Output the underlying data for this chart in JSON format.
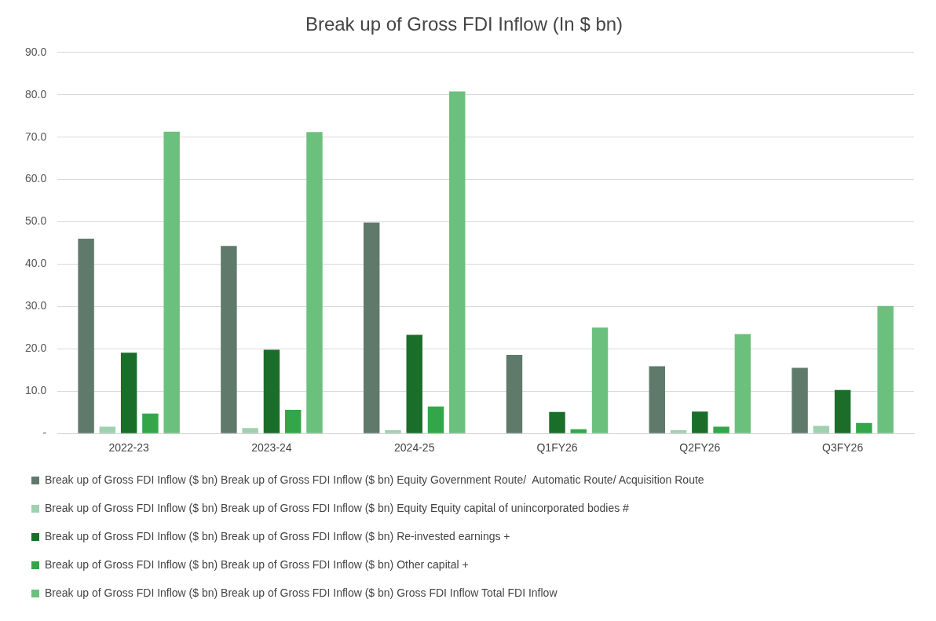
{
  "chart_data": {
    "type": "bar",
    "title": "Break up of Gross FDI Inflow (In $ bn)",
    "categories": [
      "2022-23",
      "2023-24",
      "2024-25",
      "Q1FY26",
      "Q2FY26",
      "Q3FY26"
    ],
    "series": [
      {
        "name": "Break up of Gross FDI Inflow ($ bn) Break up of Gross FDI Inflow ($ bn) Equity Government Route/  Automatic Route/ Acquisition Route",
        "color": "#5f7a6b",
        "values": [
          46.0,
          44.3,
          49.8,
          18.6,
          15.9,
          15.5
        ]
      },
      {
        "name": "Break up of Gross FDI Inflow ($ bn) Break up of Gross FDI Inflow ($ bn) Equity Equity capital of unincorporated bodies #",
        "color": "#9fd0b0",
        "values": [
          1.6,
          1.3,
          0.8,
          0,
          0.8,
          1.8
        ]
      },
      {
        "name": "Break up of Gross FDI Inflow ($ bn) Break up of Gross FDI Inflow ($ bn) Re-invested earnings +",
        "color": "#1b6e2a",
        "values": [
          19.1,
          19.8,
          23.3,
          5.1,
          5.2,
          10.3
        ]
      },
      {
        "name": "Break up of Gross FDI Inflow ($ bn) Break up of Gross FDI Inflow ($ bn) Other capital +",
        "color": "#33a64a",
        "values": [
          4.7,
          5.6,
          6.4,
          1.0,
          1.6,
          2.5
        ]
      },
      {
        "name": "Break up of Gross FDI Inflow ($ bn) Break up of Gross FDI Inflow ($ bn) Gross FDI Inflow Total FDI Inflow",
        "color": "#6cc07e",
        "values": [
          71.3,
          71.2,
          80.8,
          25.0,
          23.5,
          30.1
        ]
      }
    ],
    "ylim": [
      0,
      90
    ],
    "yticks": [
      {
        "value": 0,
        "label": "-"
      },
      {
        "value": 10,
        "label": "10.0"
      },
      {
        "value": 20,
        "label": "20.0"
      },
      {
        "value": 30,
        "label": "30.0"
      },
      {
        "value": 40,
        "label": "40.0"
      },
      {
        "value": 50,
        "label": "50.0"
      },
      {
        "value": 60,
        "label": "60.0"
      },
      {
        "value": 70,
        "label": "70.0"
      },
      {
        "value": 80,
        "label": "80.0"
      },
      {
        "value": 90,
        "label": "90.0"
      }
    ],
    "grid": "y",
    "legend": "bottom"
  }
}
